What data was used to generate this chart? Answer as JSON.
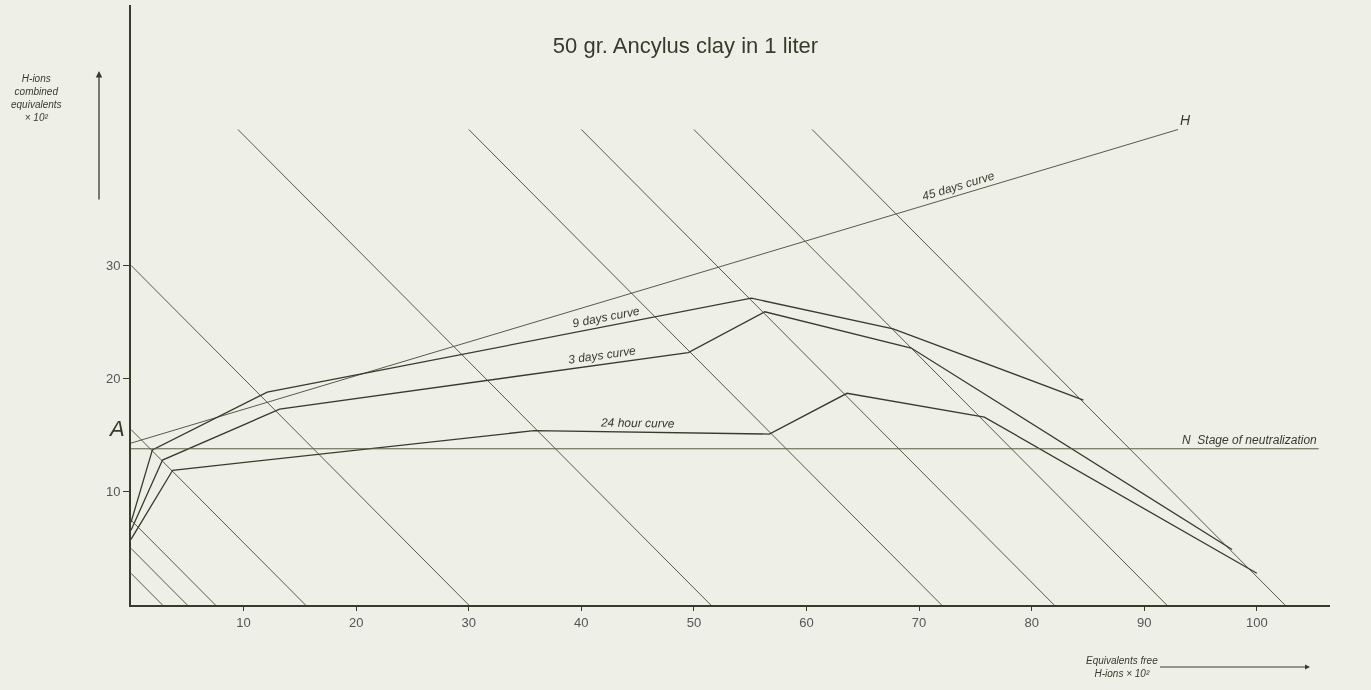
{
  "chart_data": {
    "type": "line",
    "title": "50 gr. Ancylus clay in 1 liter",
    "xlabel": "Equivalents free\nH-ions × 10²",
    "ylabel": "H-ions\ncombined\nequivalents\n× 10²",
    "xlim": [
      0,
      106.5
    ],
    "ylim": [
      0,
      53
    ],
    "xticks": [
      10,
      20,
      30,
      40,
      50,
      60,
      70,
      80,
      90,
      100
    ],
    "yticks": [
      10,
      20,
      30
    ],
    "grid": false,
    "legend": false,
    "marker": "none",
    "line_style": "solid",
    "series": [
      {
        "color": "#5a5a48",
        "x": [
          0,
          2.8,
          null,
          0,
          5,
          null,
          0,
          7.5,
          null,
          0,
          15.5,
          null,
          0,
          30,
          null,
          9.5,
          51.5,
          null,
          30,
          72,
          null,
          40,
          82,
          null,
          50,
          92,
          null,
          60.5,
          102.5
        ],
        "values": [
          2.8,
          0,
          null,
          5,
          0,
          null,
          7.5,
          0,
          null,
          15.5,
          0,
          null,
          30,
          0,
          null,
          42,
          0,
          null,
          42,
          0,
          null,
          42,
          0,
          null,
          42,
          0,
          null,
          42,
          0
        ]
      },
      {
        "name": "45 days curve",
        "color": "#5a5a48",
        "x": [
          0,
          93
        ],
        "values": [
          14.3,
          42
        ]
      },
      {
        "name": "9 days curve",
        "color": "#3a3a2c",
        "x": [
          0,
          1.9,
          12.1,
          55.1,
          67.7,
          84.6
        ],
        "values": [
          7.3,
          13.7,
          18.8,
          27.1,
          24.4,
          18.1
        ]
      },
      {
        "name": "3 days curve",
        "color": "#3a3a2c",
        "x": [
          0,
          2.8,
          13.2,
          49.5,
          56.3,
          69.3,
          97.8
        ],
        "values": [
          6.6,
          12.8,
          17.3,
          22.3,
          25.9,
          22.7,
          4.9
        ]
      },
      {
        "name": "24 hour curve",
        "color": "#3a3a2c",
        "x": [
          0,
          3.7,
          35.8,
          56.7,
          63.6,
          75.8,
          100
        ],
        "values": [
          5.8,
          11.9,
          15.4,
          15.1,
          18.7,
          16.6,
          2.8
        ]
      }
    ],
    "ref_lines": [
      {
        "axis": "y",
        "value": 13.8,
        "label": "N  Stage of neutralization",
        "color": "#5a5a48"
      }
    ],
    "annotations": [
      {
        "text": "A",
        "x": 0,
        "y": 14.3
      },
      {
        "text": "H",
        "x": 93,
        "y": 42
      }
    ]
  }
}
